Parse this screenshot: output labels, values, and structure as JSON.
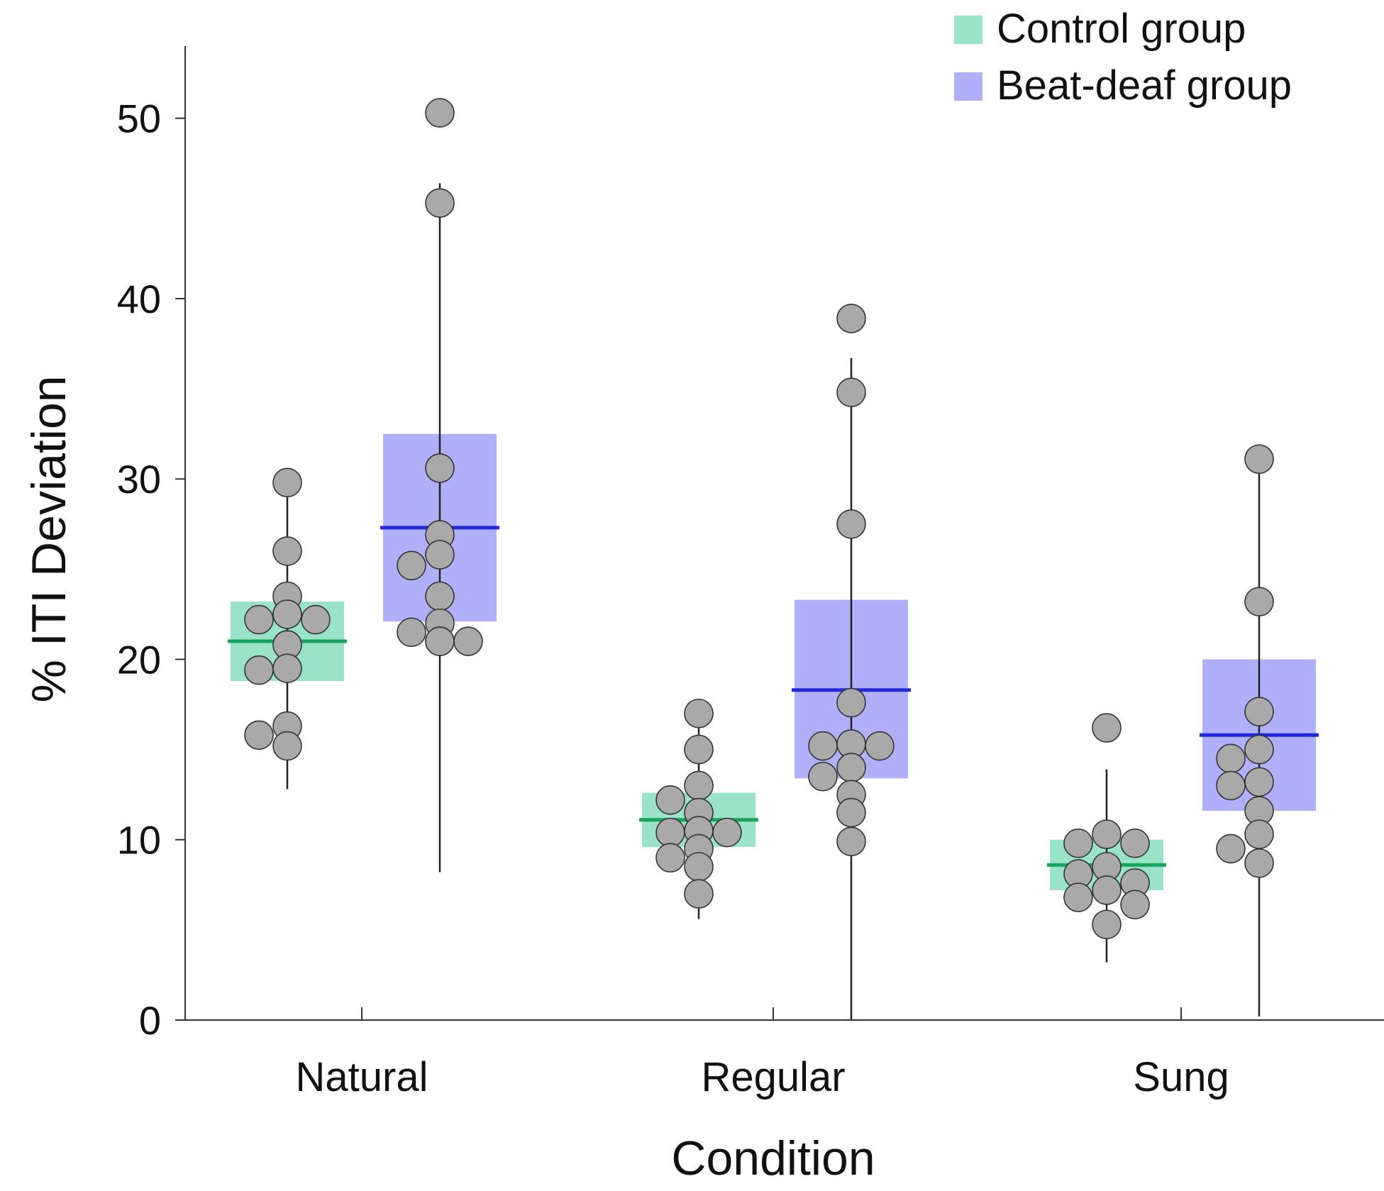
{
  "chart_data": {
    "type": "box",
    "title": "",
    "xlabel": "Condition",
    "ylabel": "% ITI Deviation",
    "ylim": [
      0,
      54
    ],
    "yticks": [
      0,
      10,
      20,
      30,
      40,
      50
    ],
    "categories": [
      "Natural",
      "Regular",
      "Sung"
    ],
    "legend_position": "top-right",
    "series": [
      {
        "name": "Control group",
        "box_color": "#9ae3c8",
        "median_color": "#1aa35a",
        "groups": [
          {
            "category": "Natural",
            "whisker_low": 12.8,
            "q1": 18.8,
            "median": 21.0,
            "q3": 23.2,
            "whisker_high": 29.8,
            "points": [
              29.8,
              26.0,
              23.5,
              22.5,
              22.2,
              22.2,
              20.8,
              19.5,
              19.4,
              16.3,
              15.8,
              15.2
            ]
          },
          {
            "category": "Regular",
            "whisker_low": 5.6,
            "q1": 9.6,
            "median": 11.1,
            "q3": 12.6,
            "whisker_high": 17.0,
            "points": [
              17.0,
              15.0,
              13.0,
              12.2,
              11.5,
              10.5,
              10.4,
              10.4,
              9.5,
              9.0,
              8.5,
              7.0
            ]
          },
          {
            "category": "Sung",
            "whisker_low": 3.2,
            "q1": 7.2,
            "median": 8.6,
            "q3": 10.0,
            "whisker_high": 13.9,
            "points": [
              16.2,
              10.3,
              9.8,
              9.8,
              8.5,
              8.1,
              7.6,
              7.2,
              6.8,
              6.4,
              5.3
            ]
          }
        ]
      },
      {
        "name": "Beat-deaf group",
        "box_color": "#b0b0fa",
        "median_color": "#1f2bd6",
        "groups": [
          {
            "category": "Natural",
            "whisker_low": 8.2,
            "q1": 22.1,
            "median": 27.3,
            "q3": 32.5,
            "whisker_high": 46.4,
            "points": [
              50.3,
              45.3,
              30.6,
              26.9,
              25.8,
              25.2,
              23.5,
              22.0,
              21.5,
              21.0,
              21.0,
              21.0
            ]
          },
          {
            "category": "Regular",
            "whisker_low": 0.0,
            "q1": 13.4,
            "median": 18.3,
            "q3": 23.3,
            "whisker_high": 36.7,
            "points": [
              38.9,
              34.8,
              27.5,
              17.6,
              15.3,
              15.2,
              15.2,
              14.0,
              13.5,
              12.5,
              11.5,
              9.9
            ]
          },
          {
            "category": "Sung",
            "whisker_low": 0.2,
            "q1": 11.6,
            "median": 15.8,
            "q3": 20.0,
            "whisker_high": 30.6,
            "points": [
              31.1,
              23.2,
              17.1,
              15.0,
              14.5,
              13.2,
              13.0,
              11.6,
              10.3,
              9.5,
              8.7
            ]
          }
        ]
      }
    ],
    "point_color": "#a9a9a9"
  }
}
